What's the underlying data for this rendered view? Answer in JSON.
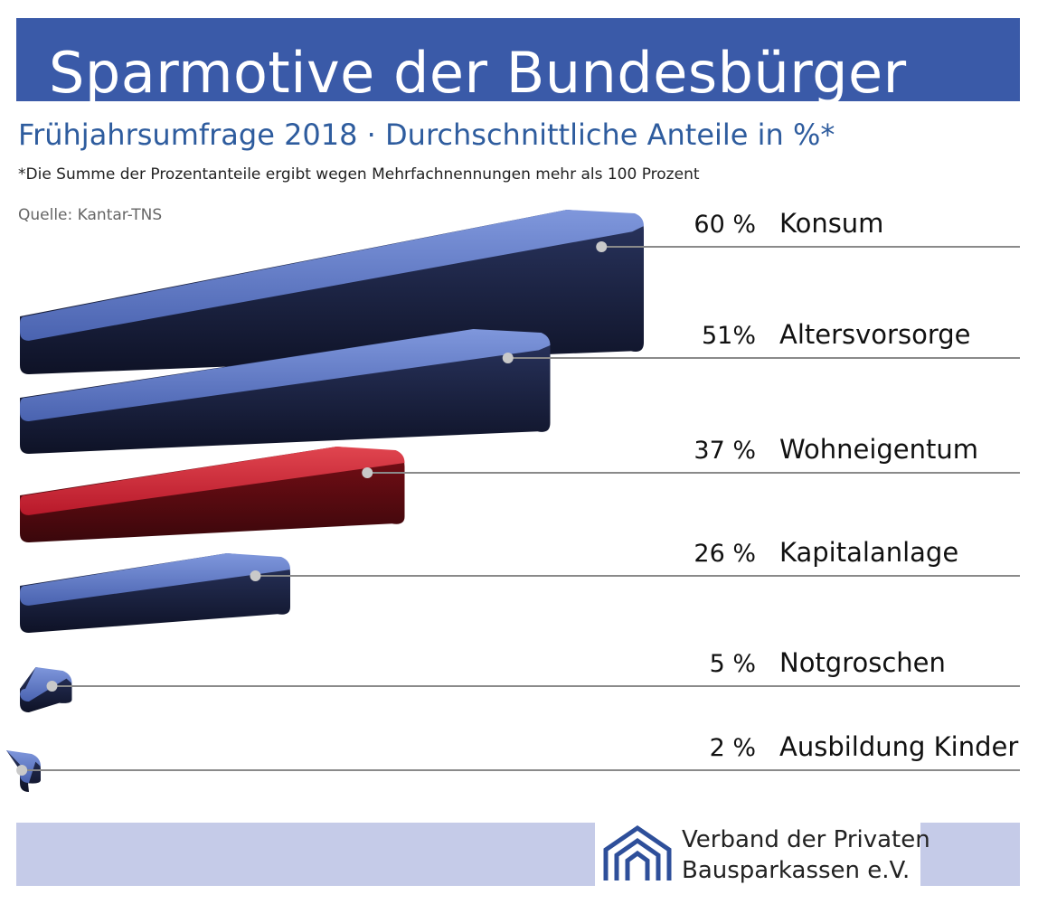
{
  "header": {
    "title": "Sparmotive der Bundesbürger",
    "subtitle": "Frühjahrsumfrage 2018 · Durchschnittliche Anteile in %*",
    "footnote": "*Die Summe der Prozentanteile ergibt wegen Mehrfachnennungen mehr als 100 Prozent",
    "source": "Quelle: Kantar-TNS"
  },
  "footer": {
    "org_line1": "Verband der Privaten",
    "org_line2": "Bausparkassen e.V.",
    "logo_icon": "house-outline-logo-icon"
  },
  "colors": {
    "title_banner": "#3a5aa8",
    "bar_blue": "#4f6cb8",
    "bar_highlight": "#c01f2c",
    "highlight_text": "#a3212e",
    "subtitle": "#2e5c9e",
    "footer_band": "#c5cbe8"
  },
  "chart_data": {
    "type": "bar",
    "orientation": "horizontal",
    "title": "Sparmotive der Bundesbürger",
    "subtitle": "Frühjahrsumfrage 2018 · Durchschnittliche Anteile in %*",
    "categories": [
      "Konsum",
      "Altersvorsorge",
      "Wohneigentum",
      "Kapitalanlage",
      "Notgroschen",
      "Ausbildung Kinder"
    ],
    "values": [
      60,
      51,
      37,
      26,
      5,
      2
    ],
    "value_labels": [
      "60 %",
      "51%",
      "37 %",
      "26 %",
      "5 %",
      "2 %"
    ],
    "highlight_category": "Wohneigentum",
    "unit": "%",
    "grid": false
  }
}
